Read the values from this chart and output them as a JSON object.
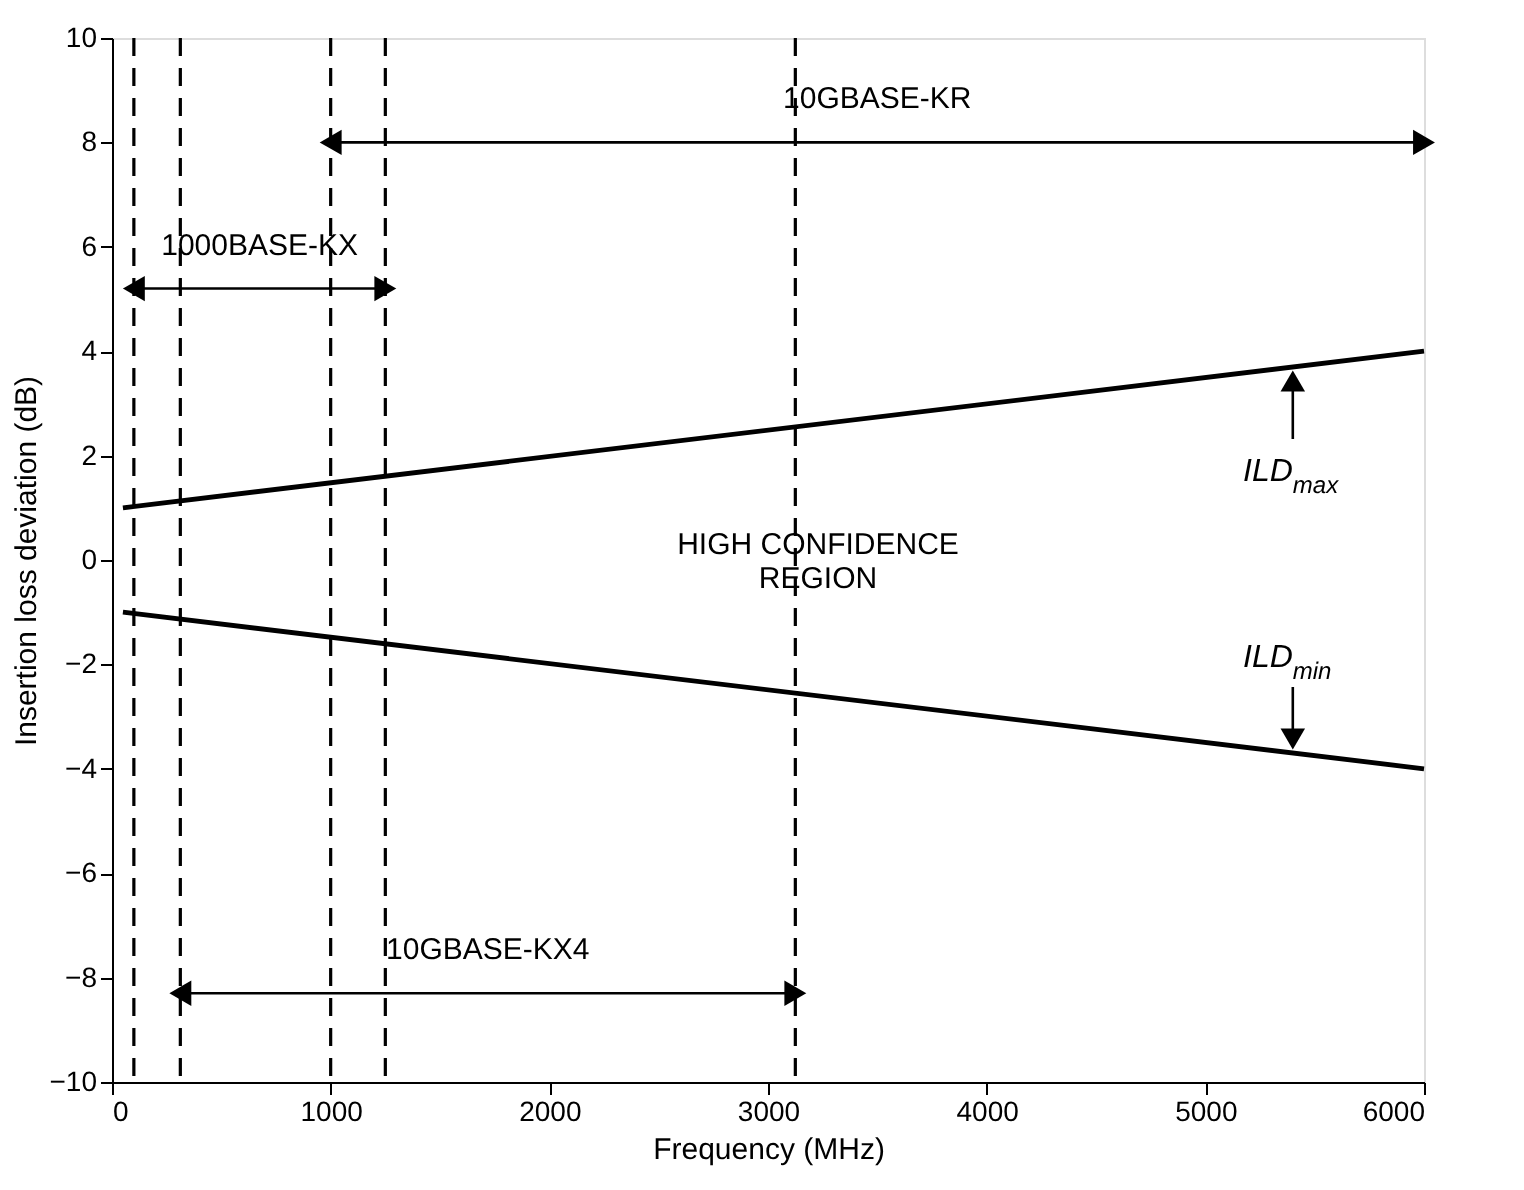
{
  "chart_data": {
    "type": "line",
    "xlabel": "Frequency (MHz)",
    "ylabel": "Insertion loss deviation (dB)",
    "xlim": [
      0,
      6000
    ],
    "xticks": [
      0,
      1000,
      2000,
      3000,
      4000,
      5000,
      6000
    ],
    "ylim": [
      -10,
      10
    ],
    "yticks": [
      -10,
      -8,
      -6,
      -4,
      -2,
      0,
      2,
      4,
      6,
      8,
      10
    ],
    "grid": false,
    "line_style": "solid",
    "marker": "none",
    "series": [
      {
        "name": "ILD$_{max}$",
        "color": "#000000",
        "x": [
          50,
          6000
        ],
        "values": [
          1.0,
          4.0
        ]
      },
      {
        "name": "ILD$_{min}$",
        "color": "#000000",
        "x": [
          50,
          6000
        ],
        "values": [
          -1.0,
          -4.0
        ]
      },
      {
        "name": "10GBASE-KR",
        "color": "#000000",
        "x": [
          1000,
          6000
        ],
        "values": [
          8.0,
          8.0
        ],
        "marker": "triangle"
      },
      {
        "name": "1000BASE-KX",
        "color": "#000000",
        "x": [
          100,
          1250
        ],
        "values": [
          5.2,
          5.2
        ],
        "marker": "triangle"
      },
      {
        "name": "10GBASE-KX4",
        "color": "#000000",
        "x": [
          312.5,
          3125
        ],
        "values": [
          -8.3,
          -8.3
        ],
        "marker": "triangle"
      }
    ],
    "ref_lines": [
      {
        "axis": "x",
        "value": 100,
        "line_style": "dashed",
        "color": "#000000"
      },
      {
        "axis": "x",
        "value": 312.5,
        "line_style": "dashed",
        "color": "#000000"
      },
      {
        "axis": "x",
        "value": 1000,
        "line_style": "dashed",
        "color": "#000000"
      },
      {
        "axis": "x",
        "value": 1250,
        "line_style": "dashed",
        "color": "#000000"
      },
      {
        "axis": "x",
        "value": 3125,
        "line_style": "dashed",
        "color": "#000000"
      }
    ],
    "annotations": [
      "HIGH CONFIDENCE\nREGION"
    ]
  }
}
